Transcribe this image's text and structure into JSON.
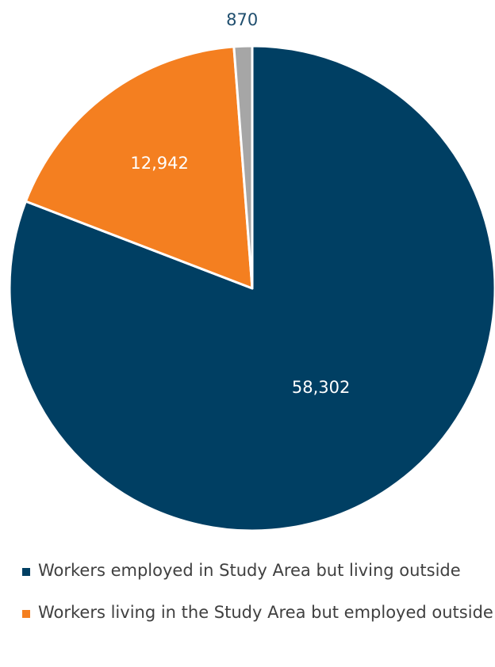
{
  "chart_data": {
    "type": "pie",
    "title": "",
    "start_angle_deg": 0,
    "direction": "clockwise",
    "slices": [
      {
        "label": "Workers employed in Study Area but living outside",
        "value": 58302,
        "display_value": "58,302",
        "color": "#003f63",
        "label_color": "#ffffff"
      },
      {
        "label": "Workers living in the Study Area but employed outside",
        "value": 12942,
        "display_value": "12,942",
        "color": "#f47f20",
        "label_color": "#ffffff"
      },
      {
        "label": "",
        "value": 870,
        "display_value": "870",
        "color": "#a6a6a6",
        "label_color": "#1f4e6e"
      }
    ],
    "legend": {
      "placement": "bottom",
      "entries": [
        "Workers employed in Study Area but living outside",
        "Workers living in the Study Area but employed outside"
      ]
    }
  },
  "legend": {
    "items": [
      {
        "label": "Workers employed in Study Area but living outside",
        "color": "#003f63"
      },
      {
        "label": "Workers living in the Study Area but employed outside",
        "color": "#f47f20"
      }
    ]
  }
}
